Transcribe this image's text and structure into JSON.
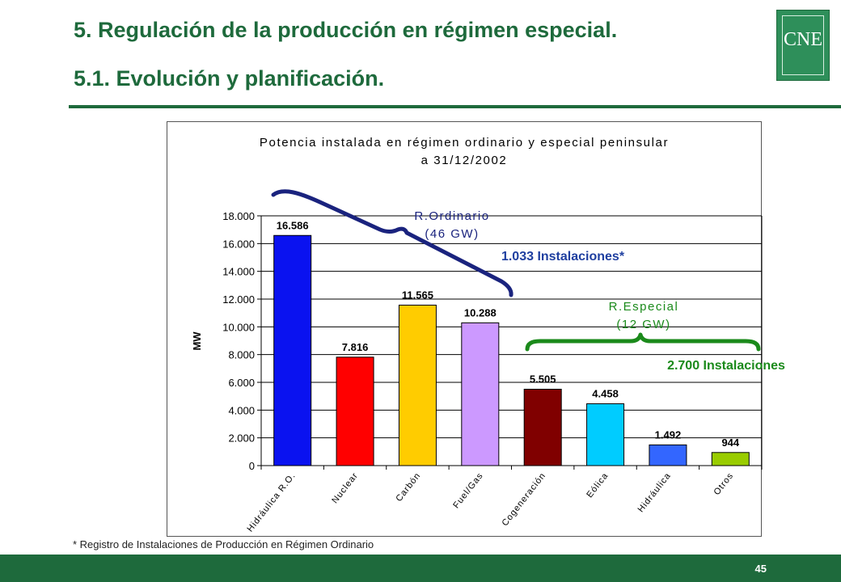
{
  "slide": {
    "title": "5. Regulación de la producción en régimen especial.",
    "subtitle": "5.1. Evolución y planificación.",
    "logo_text": "CNE",
    "footnote": "* Registro de Instalaciones de Producción en Régimen Ordinario",
    "page_number": "45"
  },
  "colors": {
    "brand_green": "#1e6a3c",
    "annotation_blue": "#1a237e",
    "annotation_green": "#1b8a1b"
  },
  "annotations": {
    "ordinario_label": "R.Ordinario",
    "ordinario_gw": "(46 GW)",
    "ordinario_count": "1.033 Instalaciones*",
    "especial_label": "R.Especial",
    "especial_gw": "(12 GW)",
    "especial_count": "2.700 Instalaciones"
  },
  "chart_data": {
    "type": "bar",
    "title_line1": "Potencia instalada en régimen ordinario y especial peninsular",
    "title_line2": "a 31/12/2002",
    "ylabel": "MW",
    "xlabel": "",
    "ylim": [
      0,
      18000
    ],
    "yticks": [
      "0",
      "2.000",
      "4.000",
      "6.000",
      "8.000",
      "10.000",
      "12.000",
      "14.000",
      "16.000",
      "18.000"
    ],
    "grid": true,
    "legend": "none",
    "categories": [
      "Hidráulica R.O.",
      "Nuclear",
      "Carbón",
      "Fuel/Gas",
      "Cogeneración",
      "Eólica",
      "Hidráulica",
      "Otros"
    ],
    "values": [
      16586,
      7816,
      11565,
      10288,
      5505,
      4458,
      1492,
      944
    ],
    "value_labels": [
      "16.586",
      "7.816",
      "11.565",
      "10.288",
      "5.505",
      "4.458",
      "1.492",
      "944"
    ],
    "bar_colors": [
      "#0a12f0",
      "#ff0000",
      "#ffcc00",
      "#cc99ff",
      "#800000",
      "#00ccff",
      "#3366ff",
      "#99cc00"
    ]
  }
}
